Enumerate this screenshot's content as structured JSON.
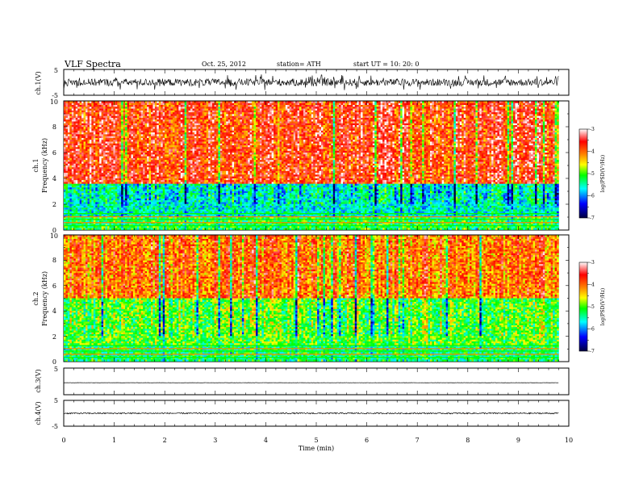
{
  "header": {
    "title": "VLF  Spectra",
    "date": "Oct. 25, 2012",
    "station": "station= ATH",
    "start": "start  UT  =    10: 20: 0"
  },
  "chart_data": [
    {
      "type": "line",
      "ylabel": "ch.1(V)",
      "ylim": [
        -5,
        5
      ],
      "yticks": [
        "5",
        "-5"
      ],
      "x_range_min": [
        0,
        9.8
      ],
      "signal": "broadband noise around 0 V, amplitude about ±1.5 V"
    },
    {
      "type": "heatmap",
      "channel": "ch.1",
      "ylabel": "Frequency  (kHz)",
      "ylim": [
        0,
        10
      ],
      "yticks": [
        "0",
        "2",
        "4",
        "6",
        "8",
        "10"
      ],
      "x_range_min": [
        0,
        9.8
      ],
      "colorbar": {
        "label": "log(PSD(V²/Hz)",
        "range": [
          -7,
          -3
        ],
        "ticks": [
          "-3",
          "-4",
          "-5",
          "-6",
          "-7"
        ],
        "colors": [
          "#000040",
          "#0000ff",
          "#00ffff",
          "#00ff00",
          "#ffff00",
          "#ff8000",
          "#ff0000",
          "#ffffff"
        ]
      },
      "description": "strong noise (log PSD about -3.5) above 3.5 kHz, weaker (about -5.5) between 1 and 3.5 kHz, horizontal narrowband lines below 1 kHz"
    },
    {
      "type": "heatmap",
      "channel": "ch.2",
      "ylabel": "Frequency  (kHz)",
      "ylim": [
        0,
        10
      ],
      "yticks": [
        "0",
        "2",
        "4",
        "6",
        "8",
        "10"
      ],
      "x_range_min": [
        0,
        9.8
      ],
      "colorbar": {
        "label": "log(PSD(V²/Hz)",
        "range": [
          -7,
          -3
        ],
        "ticks": [
          "-3",
          "-4",
          "-5",
          "-6",
          "-7"
        ]
      },
      "description": "strong noise above 5 kHz, mixed green/yellow 1-5 kHz, narrowband lines below 1.5 kHz"
    },
    {
      "type": "line",
      "ylabel": "ch.3(V)",
      "ylim": [
        -5,
        5
      ],
      "yticks": [
        "5"
      ],
      "level": -0.5,
      "x_range_min": [
        0,
        9.8
      ]
    },
    {
      "type": "line",
      "ylabel": "ch.4(V)",
      "ylim": [
        -5,
        5
      ],
      "yticks": [
        "5",
        "-5"
      ],
      "level": 0,
      "x_range_min": [
        0,
        9.8
      ]
    }
  ],
  "xaxis": {
    "label": "Time  (min)",
    "range": [
      0,
      10
    ],
    "ticks": [
      "0",
      "1",
      "2",
      "3",
      "4",
      "5",
      "6",
      "7",
      "8",
      "9",
      "10"
    ]
  }
}
